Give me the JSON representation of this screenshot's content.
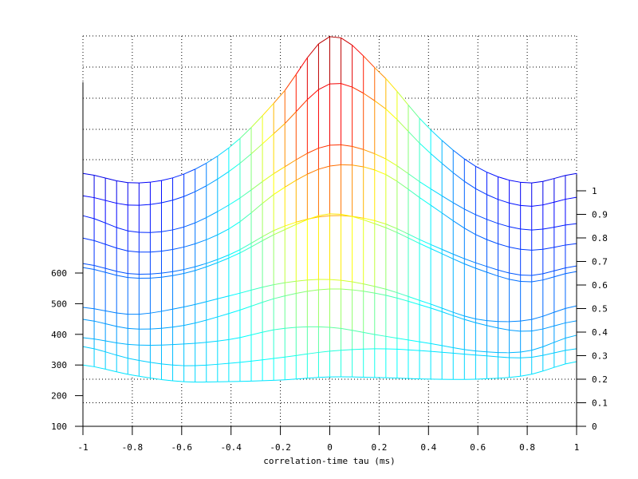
{
  "chart_data": {
    "type": "line",
    "subtype": "mesh",
    "title": "",
    "xlabel": "correlation-time tau (ms)",
    "ylabel": "",
    "xlim": [
      -1,
      1
    ],
    "x_ticks": [
      "-1",
      "-0.8",
      "-0.6",
      "-0.4",
      "-0.2",
      "0",
      "0.2",
      "0.4",
      "0.6",
      "0.8",
      "1"
    ],
    "y_left_ticks": [
      "100",
      "200",
      "300",
      "400",
      "500",
      "600"
    ],
    "y_right_ticks": [
      "0",
      "0.1",
      "0.2",
      "0.3",
      "0.4",
      "0.5",
      "0.6",
      "0.7",
      "0.8",
      "0.9",
      "1"
    ],
    "grid": true,
    "colormap": "jet",
    "x": [
      -1,
      -0.8,
      -0.6,
      -0.4,
      -0.2,
      0,
      0.2,
      0.4,
      0.6,
      0.8,
      1
    ],
    "series": [
      {
        "values": [
          925,
          894,
          920,
          1014,
          1178,
          1371,
          1256,
          1074,
          944,
          894,
          925
        ]
      },
      {
        "values": [
          852,
          821,
          847,
          936,
          1074,
          1217,
          1152,
          996,
          871,
          818,
          847
        ]
      },
      {
        "values": [
          787,
          735,
          748,
          826,
          938,
          1017,
          983,
          879,
          787,
          741,
          761
        ]
      },
      {
        "values": [
          714,
          670,
          683,
          748,
          871,
          949,
          931,
          826,
          722,
          675,
          696
        ]
      },
      {
        "values": [
          631,
          597,
          610,
          662,
          748,
          787,
          767,
          696,
          631,
          592,
          623
        ]
      },
      {
        "values": [
          618,
          584,
          597,
          652,
          735,
          793,
          756,
          683,
          613,
          571,
          605
        ]
      },
      {
        "values": [
          488,
          465,
          488,
          527,
          566,
          579,
          553,
          501,
          449,
          446,
          493
        ]
      },
      {
        "values": [
          449,
          418,
          428,
          470,
          522,
          548,
          532,
          488,
          436,
          410,
          444
        ]
      },
      {
        "values": [
          389,
          366,
          368,
          384,
          418,
          423,
          397,
          371,
          345,
          345,
          397
        ]
      },
      {
        "values": [
          360,
          319,
          298,
          306,
          324,
          345,
          353,
          345,
          332,
          324,
          353
        ]
      },
      {
        "values": [
          300,
          267,
          246,
          246,
          251,
          261,
          259,
          254,
          254,
          267,
          311
        ]
      }
    ]
  }
}
